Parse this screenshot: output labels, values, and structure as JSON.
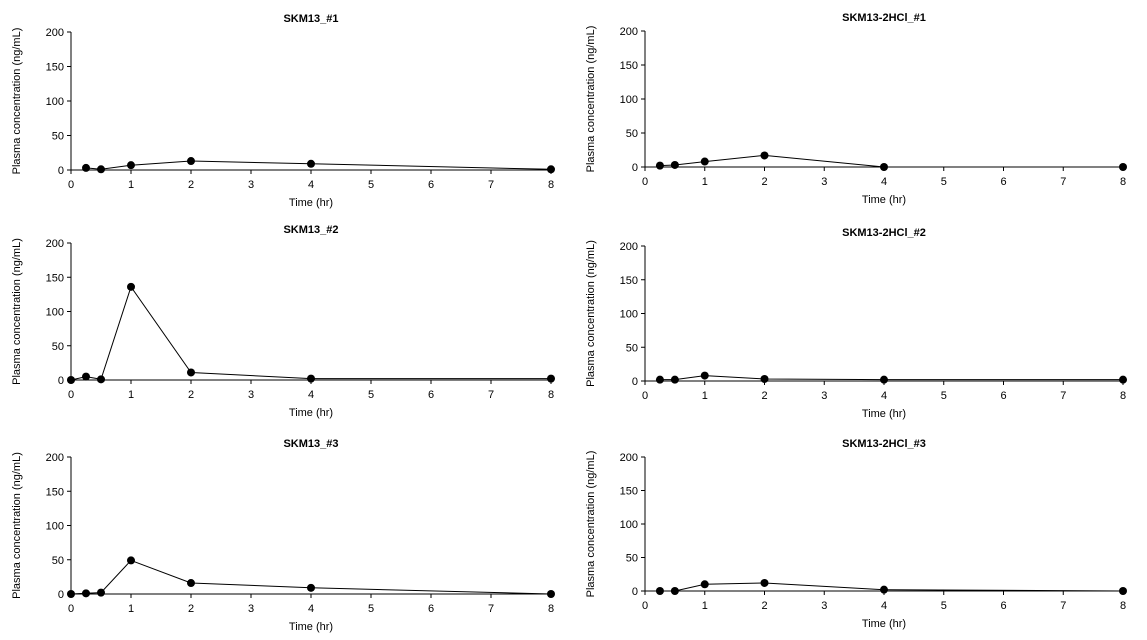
{
  "chart_data": [
    {
      "type": "line",
      "title": "SKM13_#1",
      "xlabel": "Time (hr)",
      "ylabel": "Plasma concentration (ng/mL)",
      "xlim": [
        0,
        8
      ],
      "ylim": [
        0,
        200
      ],
      "xticks": [
        "0",
        "1",
        "2",
        "3",
        "4",
        "5",
        "6",
        "7",
        "8"
      ],
      "yticks": [
        "0",
        "50",
        "100",
        "150",
        "200"
      ],
      "grid": false,
      "series": [
        {
          "x": [
            0.25,
            0.5,
            1,
            2,
            4,
            8
          ],
          "y": [
            3,
            1,
            7,
            13,
            9,
            1
          ]
        }
      ]
    },
    {
      "type": "line",
      "title": "SKM13-2HCl_#1",
      "xlabel": "Time (hr)",
      "ylabel": "Plasma concentration (ng/mL)",
      "xlim": [
        0,
        8
      ],
      "ylim": [
        0,
        200
      ],
      "xticks": [
        "0",
        "1",
        "2",
        "3",
        "4",
        "5",
        "6",
        "7",
        "8"
      ],
      "yticks": [
        "0",
        "50",
        "100",
        "150",
        "200"
      ],
      "grid": false,
      "series": [
        {
          "x": [
            0.25,
            0.5,
            1,
            2,
            4,
            8
          ],
          "y": [
            2,
            3,
            8,
            17,
            0,
            0
          ]
        }
      ]
    },
    {
      "type": "line",
      "title": "SKM13_#2",
      "xlabel": "Time (hr)",
      "ylabel": "Plasma concentration (ng/mL)",
      "xlim": [
        0,
        8
      ],
      "ylim": [
        0,
        200
      ],
      "xticks": [
        "0",
        "1",
        "2",
        "3",
        "4",
        "5",
        "6",
        "7",
        "8"
      ],
      "yticks": [
        "0",
        "50",
        "100",
        "150",
        "200"
      ],
      "grid": false,
      "series": [
        {
          "x": [
            0,
            0.25,
            0.5,
            1,
            2,
            4,
            8
          ],
          "y": [
            0,
            5,
            1,
            136,
            11,
            2,
            2
          ]
        }
      ]
    },
    {
      "type": "line",
      "title": "SKM13-2HCl_#2",
      "xlabel": "Time (hr)",
      "ylabel": "Plasma concentration (ng/mL)",
      "xlim": [
        0,
        8
      ],
      "ylim": [
        0,
        200
      ],
      "xticks": [
        "0",
        "1",
        "2",
        "3",
        "4",
        "5",
        "6",
        "7",
        "8"
      ],
      "yticks": [
        "0",
        "50",
        "100",
        "150",
        "200"
      ],
      "grid": false,
      "series": [
        {
          "x": [
            0.25,
            0.5,
            1,
            2,
            4,
            8
          ],
          "y": [
            2,
            2,
            8,
            3,
            2,
            2
          ]
        }
      ]
    },
    {
      "type": "line",
      "title": "SKM13_#3",
      "xlabel": "Time (hr)",
      "ylabel": "Plasma concentration (ng/mL)",
      "xlim": [
        0,
        8
      ],
      "ylim": [
        0,
        200
      ],
      "xticks": [
        "0",
        "1",
        "2",
        "3",
        "4",
        "5",
        "6",
        "7",
        "8"
      ],
      "yticks": [
        "0",
        "50",
        "100",
        "150",
        "200"
      ],
      "grid": false,
      "series": [
        {
          "x": [
            0,
            0.25,
            0.5,
            1,
            2,
            4,
            8
          ],
          "y": [
            0,
            1,
            2,
            49,
            16,
            9,
            0
          ]
        }
      ]
    },
    {
      "type": "line",
      "title": "SKM13-2HCl_#3",
      "xlabel": "Time (hr)",
      "ylabel": "Plasma concentration (ng/mL)",
      "xlim": [
        0,
        8
      ],
      "ylim": [
        0,
        200
      ],
      "xticks": [
        "0",
        "1",
        "2",
        "3",
        "4",
        "5",
        "6",
        "7",
        "8"
      ],
      "yticks": [
        "0",
        "50",
        "100",
        "150",
        "200"
      ],
      "grid": false,
      "series": [
        {
          "x": [
            0.25,
            0.5,
            1,
            2,
            4,
            8
          ],
          "y": [
            0,
            0,
            10,
            12,
            2,
            0
          ]
        }
      ]
    }
  ],
  "style": {
    "line_color": "#000000",
    "marker_color": "#000000",
    "axis_color": "#000000",
    "background": "#ffffff"
  }
}
